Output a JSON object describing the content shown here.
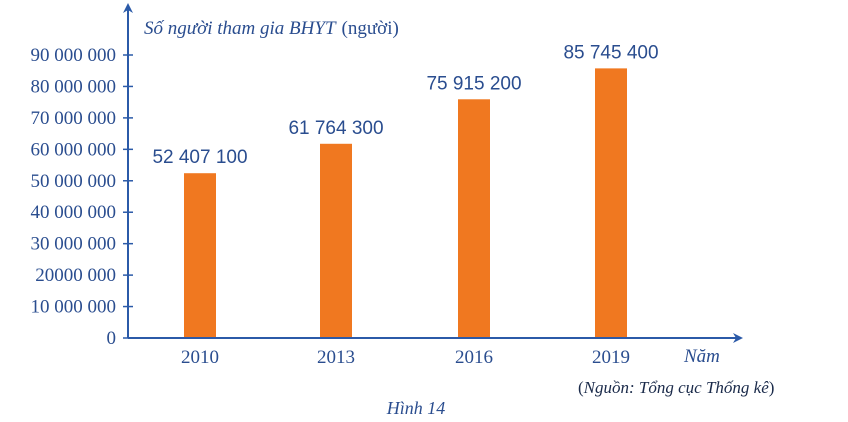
{
  "chart_data": {
    "type": "bar",
    "ylabel_italic": "Số người tham gia BHYT",
    "ylabel_unit": "(người)",
    "xlabel": "Năm",
    "categories": [
      "2010",
      "2013",
      "2016",
      "2019"
    ],
    "values": [
      52407100,
      61764300,
      75915200,
      85745400
    ],
    "value_labels": [
      "52 407 100",
      "61 764 300",
      "75 915 200",
      "85 745 400"
    ],
    "ylim": [
      0,
      90000000
    ],
    "yticks": [
      0,
      10000000,
      20000000,
      30000000,
      40000000,
      50000000,
      60000000,
      70000000,
      80000000,
      90000000
    ],
    "ytick_labels": [
      "0",
      "10 000 000",
      "20000 000",
      "30 000 000",
      "40 000 000",
      "50 000 000",
      "60 000 000",
      "70 000 000",
      "80 000 000",
      "90 000 000"
    ],
    "bar_color": "#f07820",
    "axis_color": "#2b5aa8",
    "text_color": "#2a4d8f",
    "grid": false
  },
  "source_open": "(",
  "source_label": "Nguồn: Tổng cục Thống kê",
  "source_close": ")",
  "caption": "Hình 14"
}
